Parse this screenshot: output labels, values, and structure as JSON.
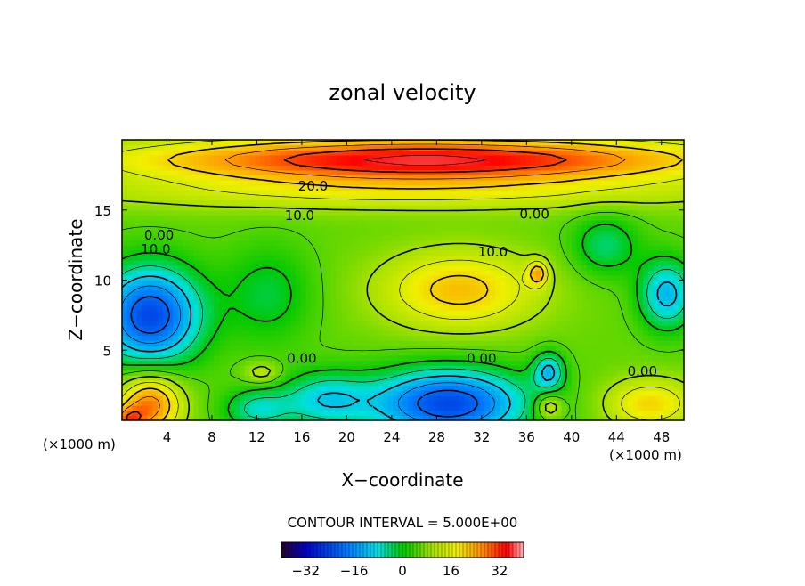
{
  "chart_data": {
    "type": "heatmap",
    "title": "zonal velocity",
    "xlabel": "X−coordinate",
    "ylabel": "Z−coordinate",
    "x_unit_left": "(×1000 m)",
    "x_unit_right": "(×1000 m)",
    "xlim": [
      0,
      50
    ],
    "ylim": [
      0,
      20
    ],
    "xticks": [
      4,
      8,
      12,
      16,
      20,
      24,
      28,
      32,
      36,
      40,
      44,
      48
    ],
    "yticks": [
      5,
      10,
      15
    ],
    "contour_labels": [
      {
        "text": "20.0",
        "x": 17,
        "z": 16.7
      },
      {
        "text": "10.0",
        "x": 15.8,
        "z": 14.6
      },
      {
        "text": "0.00",
        "x": 3.3,
        "z": 13.2
      },
      {
        "text": "10.0",
        "x": 3.0,
        "z": 12.2
      },
      {
        "text": "0.00",
        "x": 36.7,
        "z": 14.7
      },
      {
        "text": "10.0",
        "x": 33.0,
        "z": 12.0
      },
      {
        "text": "0.00",
        "x": 16.0,
        "z": 4.4
      },
      {
        "text": "0.00",
        "x": 32.0,
        "z": 4.4
      },
      {
        "text": "0.00",
        "x": 46.3,
        "z": 3.5
      }
    ],
    "field": {
      "background": 6,
      "layers": [
        {
          "x": 27,
          "z": 18.6,
          "sx": 26,
          "sz": 1.6,
          "v": 30
        },
        {
          "x": 25,
          "z": 16.2,
          "sx": 30,
          "sz": 1.3,
          "v": 9
        },
        {
          "x": 30,
          "z": 9.3,
          "sx": 7,
          "sz": 2.8,
          "v": 16
        },
        {
          "x": 2.5,
          "z": 7.5,
          "sx": 4.5,
          "sz": 3.5,
          "v": -30
        },
        {
          "x": 13,
          "z": 9,
          "sx": 4,
          "sz": 3.5,
          "v": -8
        },
        {
          "x": 48.5,
          "z": 9,
          "sx": 2.5,
          "sz": 2.5,
          "v": -18
        },
        {
          "x": 29,
          "z": 1.2,
          "sx": 7,
          "sz": 2.5,
          "v": -30
        },
        {
          "x": 18,
          "z": 1.5,
          "sx": 4,
          "sz": 2.0,
          "v": -14
        },
        {
          "x": 12,
          "z": 0.8,
          "sx": 3,
          "sz": 1.5,
          "v": -12
        },
        {
          "x": 38,
          "z": 3.5,
          "sx": 1.4,
          "sz": 1.4,
          "v": -16
        },
        {
          "x": 43,
          "z": 12.5,
          "sx": 3,
          "sz": 2.2,
          "v": -10
        },
        {
          "x": 2.5,
          "z": 1.2,
          "sx": 2.8,
          "sz": 2.2,
          "v": 22
        },
        {
          "x": 0.5,
          "z": 0,
          "sx": 1.5,
          "sz": 1.0,
          "v": 15
        },
        {
          "x": 47,
          "z": 1.2,
          "sx": 4,
          "sz": 1.8,
          "v": 14
        },
        {
          "x": 38,
          "z": 1.0,
          "sx": 1.2,
          "sz": 1.0,
          "v": 12
        },
        {
          "x": 37,
          "z": 10.5,
          "sx": 0.9,
          "sz": 0.9,
          "v": 14
        },
        {
          "x": 12.5,
          "z": 3.4,
          "sx": 1.6,
          "sz": 0.8,
          "v": 8
        }
      ]
    },
    "colorbar": {
      "min": -40,
      "max": 40,
      "ticks": [
        -32,
        -16,
        0,
        16,
        32
      ],
      "tick_labels": [
        "−32",
        "−16",
        "0",
        "16",
        "32"
      ]
    },
    "contour_interval_text": "CONTOUR INTERVAL = 5.000E+00"
  }
}
